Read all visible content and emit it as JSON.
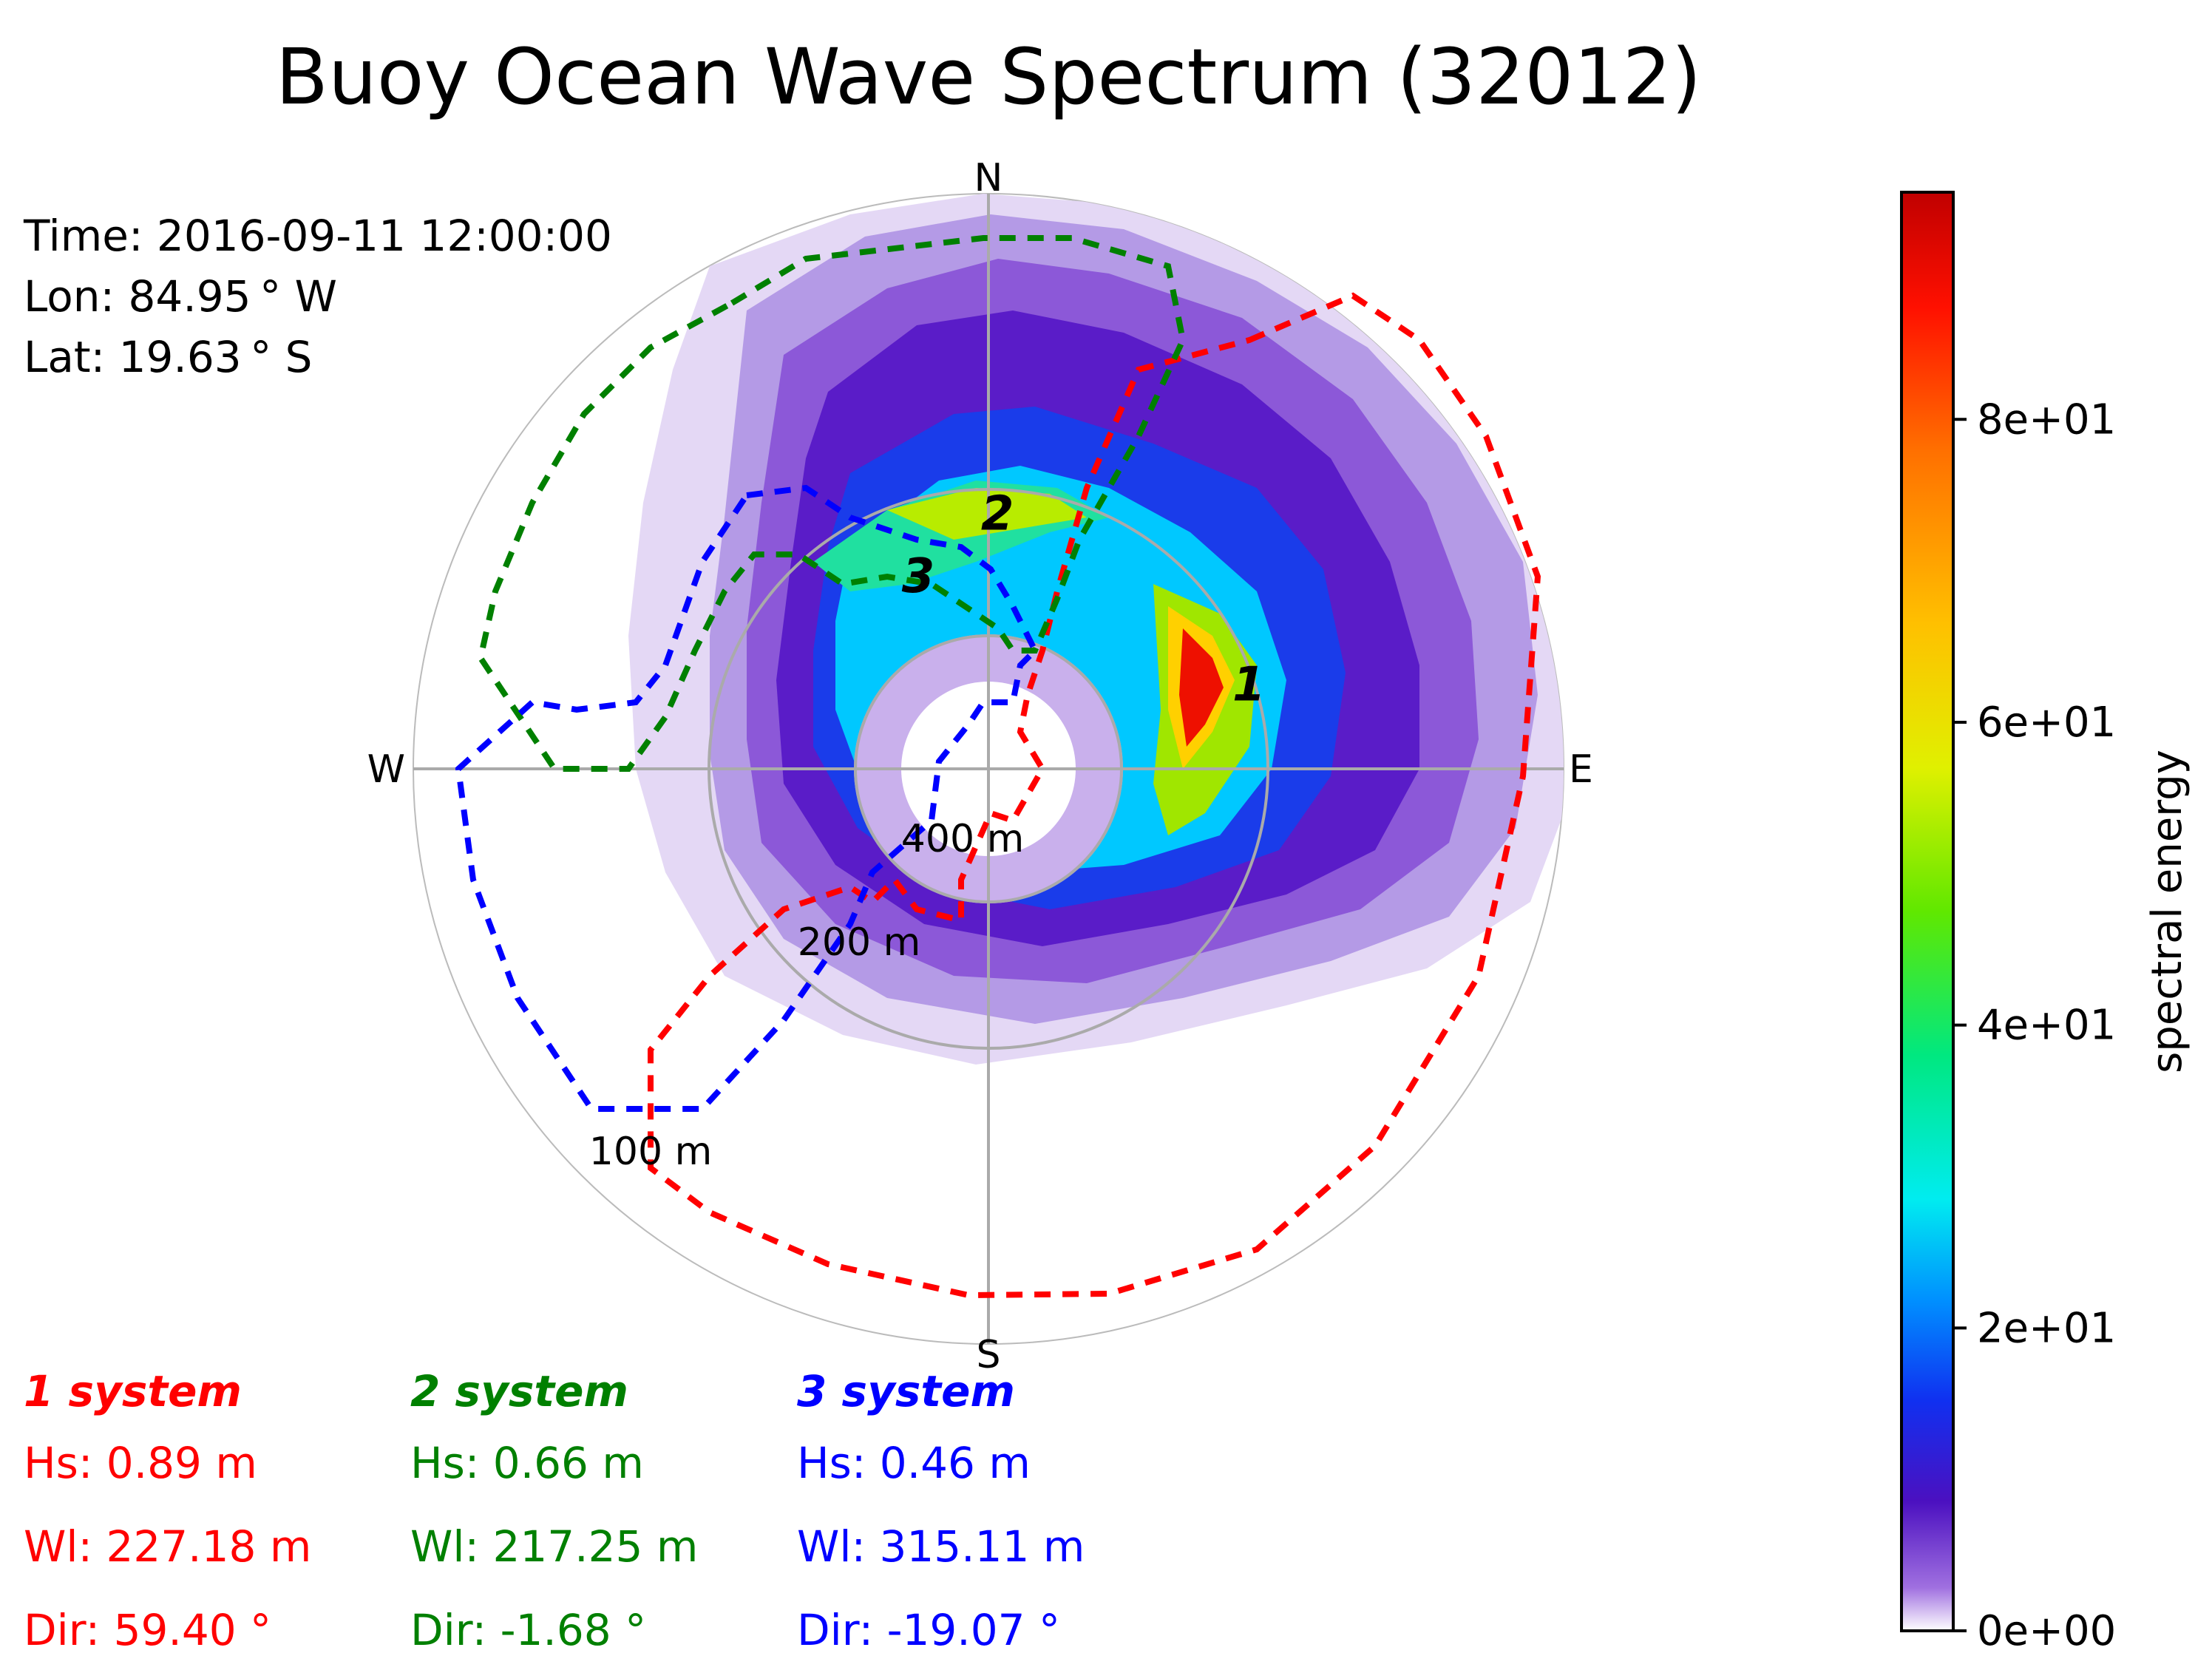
{
  "chart_data": {
    "type": "polar-contour",
    "title": "Buoy Ocean Wave Spectrum (32012)",
    "info": {
      "time": "Time: 2016-09-11 12:00:00",
      "lon": "Lon: 84.95 °  W",
      "lat": "Lat: 19.63 °  S"
    },
    "compass": {
      "n": "N",
      "e": "E",
      "s": "S",
      "w": "W"
    },
    "radial_ticks": [
      "100 m",
      "200 m",
      "400 m"
    ],
    "colorbar": {
      "label": "spectral energy",
      "range": [
        0,
        95
      ],
      "ticks": [
        {
          "value": 0,
          "label": "0e+00"
        },
        {
          "value": 20,
          "label": "2e+01"
        },
        {
          "value": 40,
          "label": "4e+01"
        },
        {
          "value": 60,
          "label": "6e+01"
        },
        {
          "value": 80,
          "label": "8e+01"
        }
      ]
    },
    "peak_markers": [
      {
        "label": "1",
        "dir_deg": 72,
        "wavelength_m": 210
      },
      {
        "label": "2",
        "dir_deg": 2,
        "wavelength_m": 225
      },
      {
        "label": "3",
        "dir_deg": -20,
        "wavelength_m": 280
      }
    ],
    "systems": [
      {
        "title": "1 system",
        "color": "#ff0000",
        "hs": "Hs: 0.89 m",
        "wl": "Wl: 227.18 m",
        "dir": "Dir: 59.40  °"
      },
      {
        "title": "2 system",
        "color": "#008000",
        "hs": "Hs: 0.66 m",
        "wl": "Wl: 217.25 m",
        "dir": "Dir: -1.68  °"
      },
      {
        "title": "3 system",
        "color": "#0000ff",
        "hs": "Hs: 0.46 m",
        "wl": "Wl: 315.11 m",
        "dir": "Dir: -19.07  °"
      }
    ],
    "colors": {
      "system1": "#ff0000",
      "system2": "#008000",
      "system3": "#0000ff",
      "grid": "#aaaaaa"
    }
  }
}
